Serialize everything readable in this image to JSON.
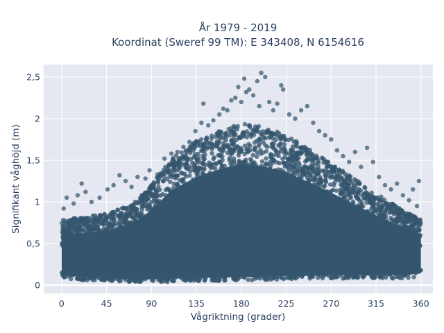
{
  "chart_data": {
    "type": "scatter",
    "title": [
      "År 1979 - 2019",
      "Koordinat (Sweref 99 TM): E 343408, N 6154616"
    ],
    "xlabel": "Vågriktning (grader)",
    "ylabel": "Signifikant våghöjd (m)",
    "xlim": [
      -18,
      372
    ],
    "ylim": [
      -0.1,
      2.65
    ],
    "xticks": [
      0,
      45,
      90,
      135,
      180,
      225,
      270,
      315,
      360
    ],
    "xtick_labels": [
      "0",
      "45",
      "90",
      "135",
      "180",
      "225",
      "270",
      "315",
      "360"
    ],
    "yticks": [
      0,
      0.5,
      1,
      1.5,
      2,
      2.5
    ],
    "ytick_labels": [
      "0",
      "0,5",
      "1",
      "1,5",
      "2",
      "2,5"
    ],
    "grid": true,
    "marker_color": "#34556e",
    "plot_background": "#e5e8f0",
    "series": [
      {
        "envelope": {
          "direction_deg": [
            0,
            20,
            45,
            70,
            90,
            110,
            135,
            160,
            180,
            200,
            225,
            250,
            270,
            290,
            315,
            340,
            360
          ],
          "min_height_m": [
            0.08,
            0.06,
            0.05,
            0.03,
            0.03,
            0.04,
            0.05,
            0.05,
            0.06,
            0.06,
            0.07,
            0.07,
            0.08,
            0.08,
            0.08,
            0.08,
            0.1
          ],
          "dense_upper_m": [
            0.75,
            0.78,
            0.82,
            0.92,
            1.15,
            1.45,
            1.65,
            1.78,
            1.85,
            1.82,
            1.72,
            1.55,
            1.4,
            1.25,
            1.05,
            0.88,
            0.75
          ]
        },
        "outliers": [
          {
            "x": 2,
            "y": 0.92
          },
          {
            "x": 5,
            "y": 1.05
          },
          {
            "x": 12,
            "y": 0.98
          },
          {
            "x": 16,
            "y": 1.08
          },
          {
            "x": 20,
            "y": 1.22
          },
          {
            "x": 24,
            "y": 1.12
          },
          {
            "x": 30,
            "y": 1.0
          },
          {
            "x": 38,
            "y": 1.05
          },
          {
            "x": 46,
            "y": 1.15
          },
          {
            "x": 52,
            "y": 1.2
          },
          {
            "x": 58,
            "y": 1.32
          },
          {
            "x": 64,
            "y": 1.25
          },
          {
            "x": 70,
            "y": 1.18
          },
          {
            "x": 76,
            "y": 1.3
          },
          {
            "x": 84,
            "y": 1.28
          },
          {
            "x": 88,
            "y": 1.38
          },
          {
            "x": 96,
            "y": 1.33
          },
          {
            "x": 103,
            "y": 1.52
          },
          {
            "x": 110,
            "y": 1.58
          },
          {
            "x": 116,
            "y": 1.6
          },
          {
            "x": 122,
            "y": 1.66
          },
          {
            "x": 128,
            "y": 1.72
          },
          {
            "x": 134,
            "y": 1.85
          },
          {
            "x": 140,
            "y": 1.95
          },
          {
            "x": 142,
            "y": 2.18
          },
          {
            "x": 147,
            "y": 1.92
          },
          {
            "x": 152,
            "y": 1.98
          },
          {
            "x": 158,
            "y": 2.05
          },
          {
            "x": 162,
            "y": 2.12
          },
          {
            "x": 166,
            "y": 2.1
          },
          {
            "x": 170,
            "y": 2.22
          },
          {
            "x": 174,
            "y": 2.25
          },
          {
            "x": 177,
            "y": 2.38
          },
          {
            "x": 180,
            "y": 2.2
          },
          {
            "x": 183,
            "y": 2.48
          },
          {
            "x": 185,
            "y": 2.32
          },
          {
            "x": 188,
            "y": 2.35
          },
          {
            "x": 192,
            "y": 2.28
          },
          {
            "x": 196,
            "y": 2.45
          },
          {
            "x": 198,
            "y": 2.15
          },
          {
            "x": 200,
            "y": 2.55
          },
          {
            "x": 204,
            "y": 2.5
          },
          {
            "x": 208,
            "y": 2.2
          },
          {
            "x": 212,
            "y": 2.1
          },
          {
            "x": 216,
            "y": 2.18
          },
          {
            "x": 220,
            "y": 2.4
          },
          {
            "x": 222,
            "y": 2.35
          },
          {
            "x": 228,
            "y": 2.05
          },
          {
            "x": 234,
            "y": 2.0
          },
          {
            "x": 240,
            "y": 2.1
          },
          {
            "x": 246,
            "y": 2.15
          },
          {
            "x": 252,
            "y": 1.95
          },
          {
            "x": 258,
            "y": 1.85
          },
          {
            "x": 264,
            "y": 1.8
          },
          {
            "x": 270,
            "y": 1.75
          },
          {
            "x": 276,
            "y": 1.62
          },
          {
            "x": 282,
            "y": 1.55
          },
          {
            "x": 288,
            "y": 1.48
          },
          {
            "x": 294,
            "y": 1.6
          },
          {
            "x": 300,
            "y": 1.42
          },
          {
            "x": 306,
            "y": 1.65
          },
          {
            "x": 312,
            "y": 1.48
          },
          {
            "x": 318,
            "y": 1.3
          },
          {
            "x": 324,
            "y": 1.2
          },
          {
            "x": 330,
            "y": 1.15
          },
          {
            "x": 336,
            "y": 1.22
          },
          {
            "x": 342,
            "y": 1.08
          },
          {
            "x": 348,
            "y": 1.02
          },
          {
            "x": 352,
            "y": 1.15
          },
          {
            "x": 356,
            "y": 0.95
          },
          {
            "x": 358,
            "y": 1.25
          }
        ]
      }
    ]
  }
}
